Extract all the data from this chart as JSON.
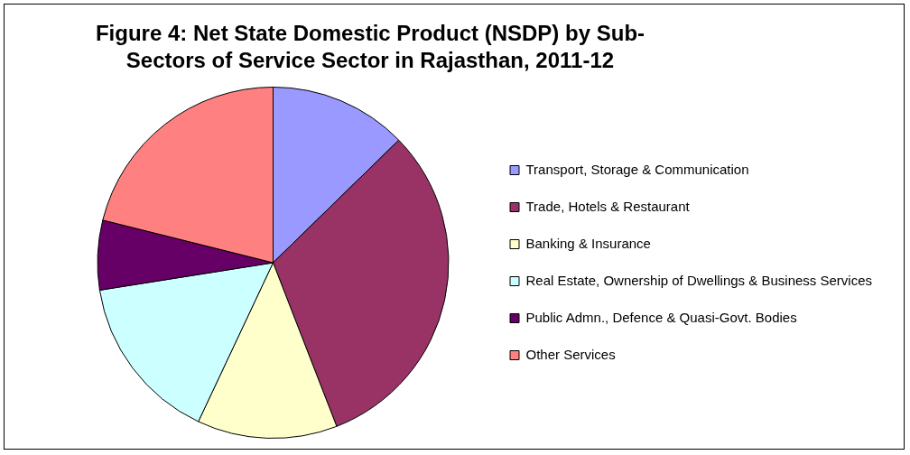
{
  "chart_data": {
    "type": "pie",
    "title": "Figure 4: Net State Domestic Product (NSDP) by Sub-Sectors of Service Sector in Rajasthan, 2011-12",
    "categories": [
      "Transport, Storage & Communication",
      "Trade, Hotels & Restaurant",
      "Banking & Insurance",
      "Real Estate, Ownership of Dwellings & Business Services",
      "Public Admn., Defence & Quasi-Govt. Bodies",
      "Other Services"
    ],
    "values": [
      12.7,
      31.4,
      12.9,
      15.5,
      6.4,
      21.1
    ],
    "colors": [
      "#9999ff",
      "#993366",
      "#ffffcc",
      "#ccffff",
      "#660066",
      "#ff8080"
    ],
    "legend": "right"
  }
}
